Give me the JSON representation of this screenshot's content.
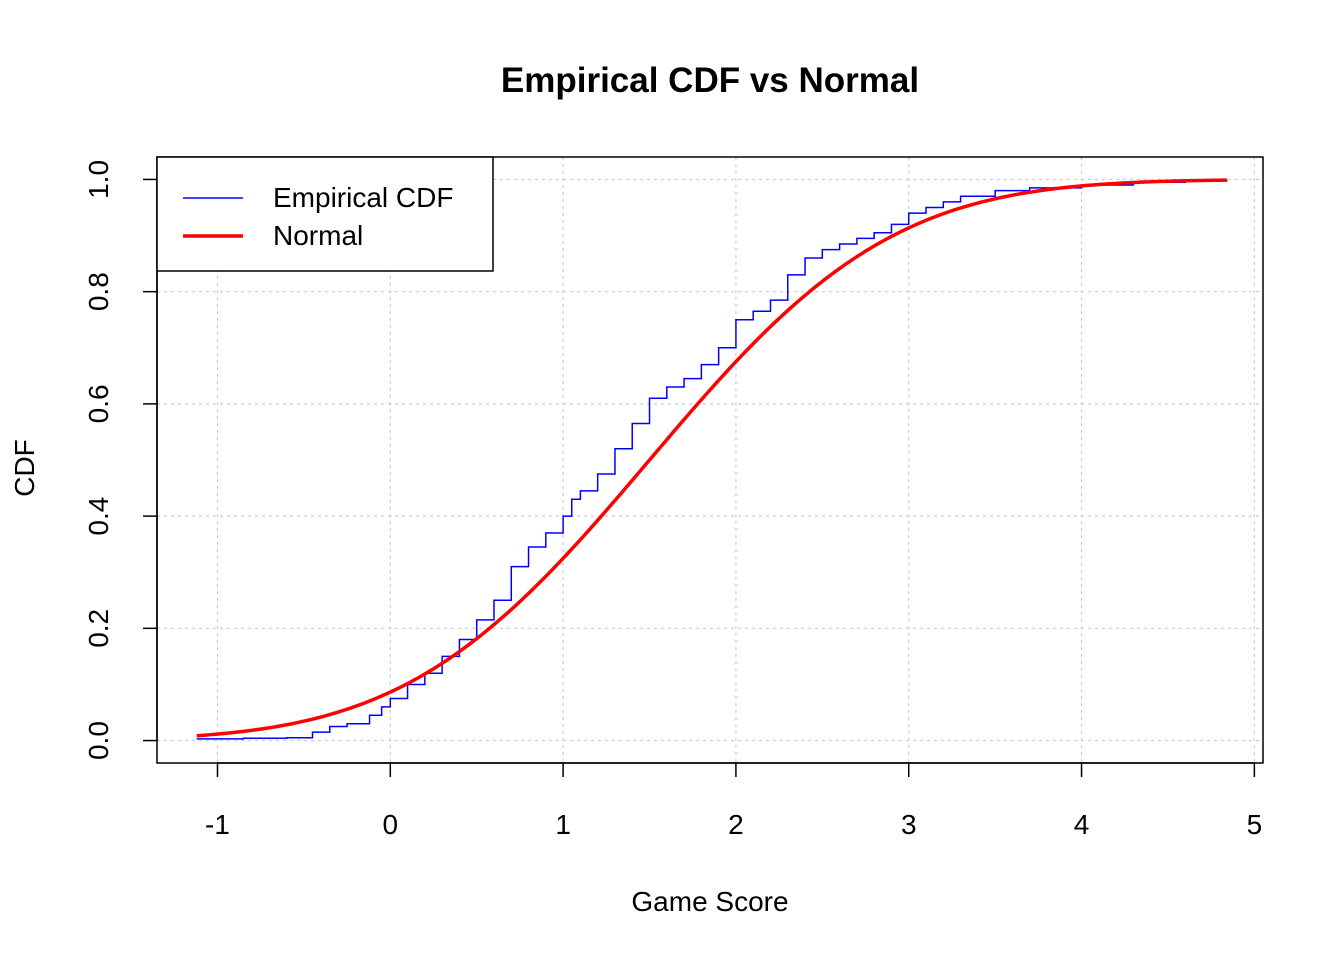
{
  "chart_data": {
    "type": "line",
    "title": "Empirical CDF vs Normal",
    "xlabel": "Game Score",
    "ylabel": "CDF",
    "xlim": [
      -1.35,
      5.05
    ],
    "ylim": [
      -0.04,
      1.04
    ],
    "x_ticks": [
      "-1",
      "0",
      "1",
      "2",
      "3",
      "4",
      "5"
    ],
    "y_ticks": [
      "0.0",
      "0.2",
      "0.4",
      "0.6",
      "0.8",
      "1.0"
    ],
    "grid": true,
    "legend_position": "top-left",
    "normal_params": {
      "mean": 1.5,
      "sd": 1.1
    },
    "series": [
      {
        "name": "Empirical CDF",
        "color": "#0000ff",
        "style": "step",
        "x": [
          -1.12,
          -0.85,
          -0.6,
          -0.45,
          -0.35,
          -0.25,
          -0.12,
          -0.05,
          0.0,
          0.1,
          0.2,
          0.3,
          0.4,
          0.5,
          0.6,
          0.7,
          0.8,
          0.9,
          1.0,
          1.05,
          1.1,
          1.2,
          1.3,
          1.4,
          1.5,
          1.6,
          1.7,
          1.8,
          1.9,
          2.0,
          2.1,
          2.2,
          2.3,
          2.4,
          2.5,
          2.6,
          2.7,
          2.8,
          2.9,
          3.0,
          3.1,
          3.2,
          3.3,
          3.5,
          3.7,
          4.0,
          4.3,
          4.6,
          4.84
        ],
        "y": [
          0.003,
          0.004,
          0.005,
          0.015,
          0.025,
          0.03,
          0.045,
          0.06,
          0.075,
          0.1,
          0.12,
          0.15,
          0.18,
          0.215,
          0.25,
          0.31,
          0.345,
          0.37,
          0.4,
          0.43,
          0.445,
          0.475,
          0.52,
          0.565,
          0.61,
          0.63,
          0.645,
          0.67,
          0.7,
          0.75,
          0.765,
          0.785,
          0.83,
          0.86,
          0.875,
          0.885,
          0.895,
          0.905,
          0.92,
          0.94,
          0.95,
          0.96,
          0.97,
          0.98,
          0.985,
          0.99,
          0.995,
          0.998,
          1.0
        ]
      },
      {
        "name": "Normal",
        "color": "#ff0000",
        "style": "line"
      }
    ]
  }
}
